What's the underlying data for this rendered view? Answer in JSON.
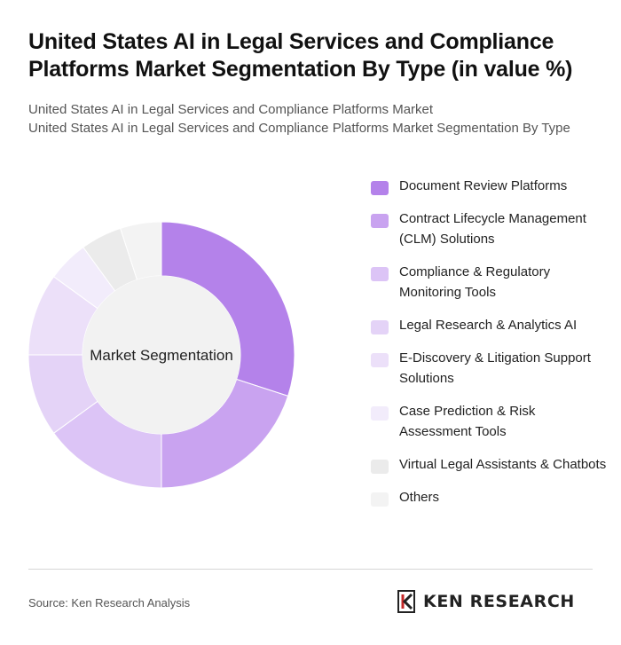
{
  "header": {
    "title": "United States AI in Legal Services and Compliance Platforms Market Segmentation By Type (in value %)",
    "subtitle_line1": "United States AI in Legal Services and Compliance Platforms Market",
    "subtitle_line2": "United States AI in Legal Services and Compliance Platforms Market Segmentation By Type"
  },
  "chart_data": {
    "type": "pie",
    "center_label": "Market Segmentation",
    "categories": [
      "Document Review Platforms",
      "Contract Lifecycle Management (CLM) Solutions",
      "Compliance & Regulatory Monitoring Tools",
      "Legal Research & Analytics AI",
      "E-Discovery & Litigation Support Solutions",
      "Case Prediction & Risk Assessment Tools",
      "Virtual Legal Assistants & Chatbots",
      "Others"
    ],
    "values": [
      30,
      20,
      15,
      10,
      10,
      5,
      5,
      5
    ],
    "colors": [
      "#b482ea",
      "#c9a3f0",
      "#dcc4f6",
      "#e4d3f7",
      "#ece0f9",
      "#f2ecfb",
      "#ebebeb",
      "#f3f3f3"
    ],
    "legend_position": "right"
  },
  "footer": {
    "source": "Source: Ken Research Analysis",
    "logo_text": "KEN RESEARCH",
    "logo_icon": "ken-research-logo-icon"
  }
}
